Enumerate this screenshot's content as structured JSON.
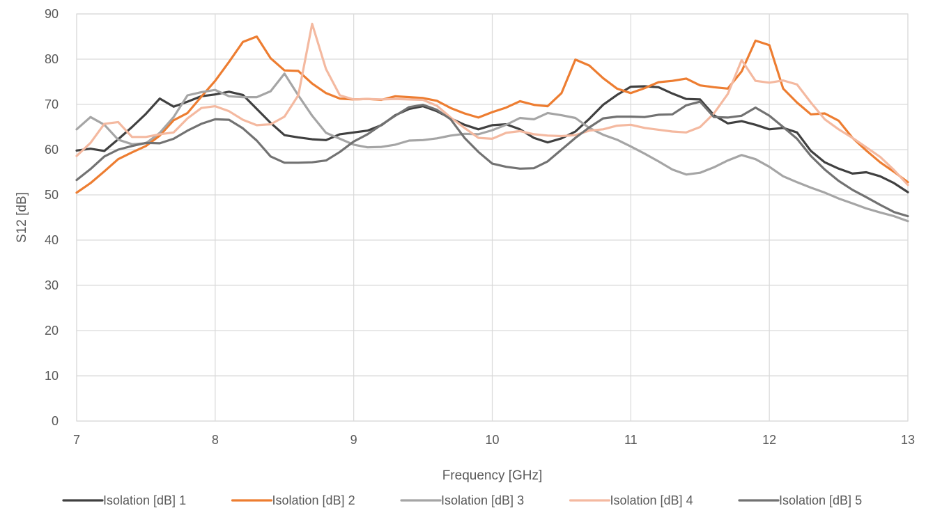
{
  "chart_data": {
    "type": "line",
    "title": "",
    "xlabel": "Frequency [GHz]",
    "ylabel": "S12 [dB]",
    "xlim": [
      7,
      13
    ],
    "ylim": [
      0,
      90
    ],
    "x_ticks": [
      7,
      8,
      9,
      10,
      11,
      12,
      13
    ],
    "y_ticks": [
      0,
      10,
      20,
      30,
      40,
      50,
      60,
      70,
      80,
      90
    ],
    "grid": true,
    "legend_position": "bottom",
    "x": [
      7.0,
      7.1,
      7.2,
      7.3,
      7.4,
      7.5,
      7.6,
      7.7,
      7.8,
      7.9,
      8.0,
      8.1,
      8.2,
      8.3,
      8.4,
      8.5,
      8.6,
      8.7,
      8.8,
      8.9,
      9.0,
      9.1,
      9.2,
      9.3,
      9.4,
      9.5,
      9.6,
      9.7,
      9.8,
      9.9,
      10.0,
      10.1,
      10.2,
      10.3,
      10.4,
      10.5,
      10.6,
      10.7,
      10.8,
      10.9,
      11.0,
      11.1,
      11.2,
      11.3,
      11.4,
      11.5,
      11.6,
      11.7,
      11.8,
      11.9,
      12.0,
      12.1,
      12.2,
      12.3,
      12.4,
      12.5,
      12.6,
      12.7,
      12.8,
      12.9,
      13.0
    ],
    "series": [
      {
        "name": "Isolation [dB] 1",
        "color": "#404040",
        "values": [
          59.8,
          60.2,
          59.7,
          62.3,
          65.0,
          67.9,
          71.3,
          69.5,
          70.6,
          71.8,
          72.2,
          72.8,
          72.1,
          69.0,
          65.9,
          63.2,
          62.7,
          62.3,
          62.1,
          63.4,
          63.8,
          64.2,
          65.4,
          67.6,
          69.0,
          69.6,
          68.5,
          66.9,
          65.5,
          64.5,
          65.4,
          65.6,
          64.5,
          62.6,
          61.6,
          62.5,
          64.0,
          66.8,
          69.9,
          72.1,
          73.9,
          74.0,
          73.8,
          72.4,
          71.2,
          71.1,
          67.6,
          65.8,
          66.3,
          65.5,
          64.5,
          64.8,
          63.8,
          59.7,
          57.2,
          55.8,
          54.7,
          55.0,
          54.1,
          52.6,
          50.6
        ]
      },
      {
        "name": "Isolation [dB] 2",
        "color": "#ED7D31",
        "values": [
          50.5,
          52.6,
          55.2,
          57.9,
          59.4,
          60.8,
          63.1,
          66.5,
          68.1,
          71.7,
          75.2,
          79.4,
          83.8,
          85.0,
          80.2,
          77.5,
          77.4,
          74.6,
          72.5,
          71.3,
          71.1,
          71.2,
          71.0,
          71.8,
          71.6,
          71.4,
          70.8,
          69.2,
          68.0,
          67.1,
          68.3,
          69.3,
          70.7,
          69.9,
          69.6,
          72.5,
          79.9,
          78.6,
          75.8,
          73.5,
          72.5,
          73.6,
          74.9,
          75.2,
          75.7,
          74.2,
          73.8,
          73.5,
          77.3,
          84.1,
          83.1,
          73.5,
          70.4,
          67.8,
          68.0,
          66.4,
          62.6,
          59.8,
          57.2,
          55.1,
          52.8
        ]
      },
      {
        "name": "Isolation [dB] 3",
        "color": "#A5A5A5",
        "values": [
          64.5,
          67.2,
          65.5,
          62.2,
          61.2,
          61.4,
          63.7,
          67.2,
          72.0,
          72.7,
          73.2,
          71.8,
          71.6,
          71.6,
          72.9,
          76.8,
          72.0,
          67.5,
          63.7,
          62.4,
          61.1,
          60.5,
          60.6,
          61.1,
          62.0,
          62.1,
          62.5,
          63.1,
          63.5,
          63.4,
          64.3,
          65.5,
          67.0,
          66.7,
          68.1,
          67.6,
          67.0,
          64.8,
          63.3,
          62.2,
          60.7,
          59.1,
          57.4,
          55.6,
          54.5,
          54.9,
          56.1,
          57.6,
          58.8,
          57.9,
          56.2,
          54.1,
          52.8,
          51.6,
          50.5,
          49.2,
          48.1,
          47.0,
          46.1,
          45.3,
          44.2
        ]
      },
      {
        "name": "Isolation [dB] 4",
        "color": "#F4B9A0",
        "values": [
          58.6,
          61.5,
          65.7,
          66.1,
          62.8,
          62.8,
          63.4,
          63.8,
          66.9,
          69.2,
          69.6,
          68.5,
          66.6,
          65.4,
          65.6,
          67.3,
          72.0,
          87.8,
          77.8,
          72.0,
          71.1,
          71.2,
          71.1,
          71.2,
          71.1,
          71.0,
          69.7,
          67.1,
          64.8,
          62.6,
          62.4,
          63.7,
          64.1,
          63.4,
          63.1,
          63.0,
          63.2,
          64.2,
          64.5,
          65.3,
          65.5,
          64.8,
          64.4,
          64.0,
          63.8,
          65.0,
          68.0,
          72.3,
          79.8,
          75.2,
          74.8,
          75.3,
          74.4,
          70.4,
          66.7,
          64.5,
          62.6,
          60.5,
          58.4,
          55.5,
          52.2
        ]
      },
      {
        "name": "Isolation [dB] 5",
        "color": "#727272",
        "values": [
          53.3,
          55.7,
          58.5,
          60.0,
          60.8,
          61.5,
          61.4,
          62.4,
          64.2,
          65.7,
          66.7,
          66.6,
          64.7,
          62.0,
          58.5,
          57.1,
          57.1,
          57.2,
          57.6,
          59.5,
          61.8,
          63.4,
          65.5,
          67.5,
          69.4,
          69.9,
          68.8,
          66.7,
          62.6,
          59.5,
          56.9,
          56.2,
          55.8,
          55.9,
          57.4,
          60.0,
          62.6,
          64.9,
          66.9,
          67.3,
          67.3,
          67.2,
          67.7,
          67.8,
          69.8,
          70.6,
          67.2,
          67.1,
          67.5,
          69.3,
          67.5,
          65.0,
          62.4,
          58.6,
          55.6,
          53.1,
          51.1,
          49.5,
          47.8,
          46.2,
          45.3
        ]
      }
    ]
  }
}
